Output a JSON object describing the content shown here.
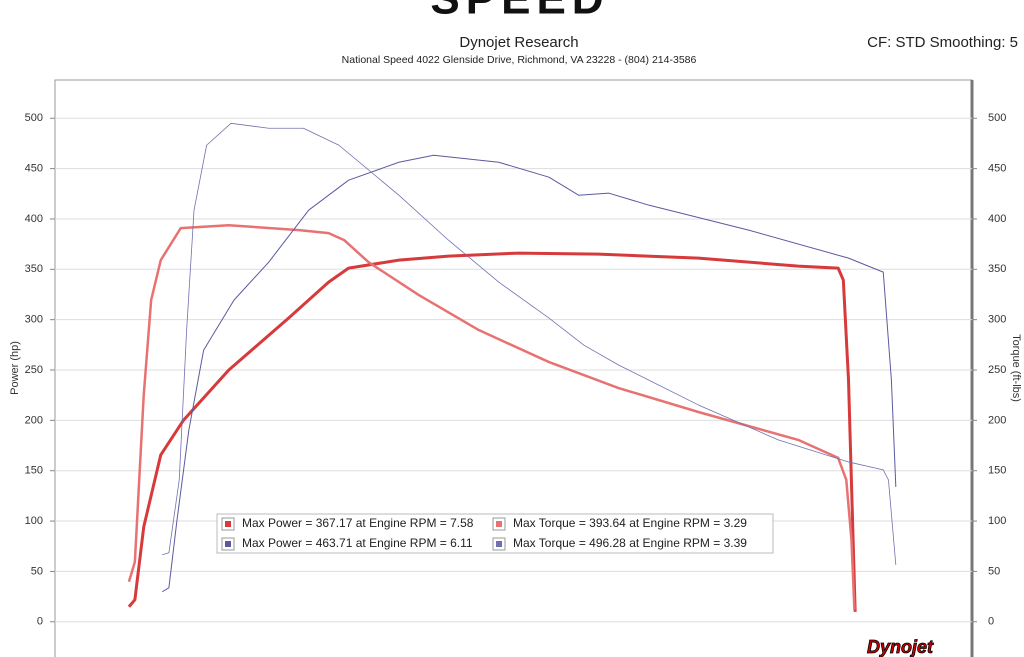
{
  "header": {
    "logo": "SPEED",
    "title": "Dynojet Research",
    "subtitle": "National Speed 4022 Glenside Drive, Richmond, VA 23228 - (804) 214-3586",
    "settings": "CF: STD Smoothing: 5",
    "footer_logo": "Dynojet"
  },
  "chart_data": {
    "type": "line",
    "ylabel": "Power (hp)",
    "y2label": "Torque (ft-lbs)",
    "xlim": [
      1,
      13.4
    ],
    "ylim": [
      -35,
      538
    ],
    "yticks": [
      0,
      50,
      100,
      150,
      200,
      250,
      300,
      350,
      400,
      450,
      500
    ],
    "y2lim": [
      -35,
      538
    ],
    "y2ticks": [
      0,
      50,
      100,
      150,
      200,
      250,
      300,
      350,
      400,
      450,
      500
    ],
    "grid": true,
    "series": [
      {
        "name": "Max Power = 367.17 at Engine RPM = 7.58",
        "color": "#d63a3a",
        "width": 3,
        "x": [
          2.0,
          2.08,
          2.2,
          2.43,
          2.74,
          3.35,
          4.16,
          4.7,
          4.97,
          5.65,
          6.32,
          7.27,
          8.35,
          9.7,
          11.05,
          11.59,
          11.66,
          11.73,
          11.8,
          11.82
        ],
        "values": [
          14.9,
          21.8,
          94.2,
          165.7,
          200.4,
          250,
          301.6,
          337.3,
          351.2,
          359.1,
          363.1,
          366.1,
          365.1,
          361.1,
          353.2,
          351.2,
          339.3,
          240.1,
          61.5,
          9.9
        ]
      },
      {
        "name": "Max Torque = 393.64 at Engine RPM = 3.29",
        "color": "#e87272",
        "width": 2.5,
        "axis": "y2",
        "x": [
          2.0,
          2.08,
          2.2,
          2.3,
          2.43,
          2.7,
          3.35,
          4.3,
          4.7,
          4.91,
          5.24,
          5.92,
          6.73,
          7.68,
          8.62,
          9.7,
          11.05,
          11.59,
          11.7,
          11.77,
          11.81
        ],
        "values": [
          39.7,
          59.5,
          225.2,
          319.4,
          359.1,
          390.9,
          393.8,
          388.9,
          385.9,
          379,
          357.1,
          324.4,
          289.7,
          257.9,
          232.1,
          208.3,
          180.6,
          162.7,
          140.9,
          81.3,
          11.9
        ]
      },
      {
        "name": "Max Power = 463.71 at Engine RPM = 6.11",
        "color": "#5a5aa0",
        "width": 1,
        "x": [
          2.45,
          2.54,
          2.65,
          2.81,
          3.01,
          3.42,
          3.89,
          4.43,
          4.97,
          5.65,
          6.12,
          7.0,
          7.68,
          8.08,
          8.49,
          9.03,
          10.38,
          11.73,
          12.2,
          12.31,
          12.37
        ],
        "values": [
          29.8,
          33.7,
          101.2,
          190.5,
          269.8,
          319.4,
          357.1,
          408.7,
          438.5,
          456.3,
          463.3,
          456.3,
          441.5,
          423.6,
          425.6,
          413.7,
          388.9,
          361.1,
          347.2,
          240.1,
          133.9
        ]
      },
      {
        "name": "Max Torque = 496.28 at Engine RPM = 3.39",
        "color": "#7070b0",
        "width": 0.8,
        "axis": "y2",
        "x": [
          2.45,
          2.54,
          2.68,
          2.78,
          2.88,
          3.05,
          3.38,
          3.89,
          4.36,
          4.84,
          5.65,
          6.32,
          7.0,
          7.68,
          8.15,
          8.62,
          9.7,
          10.78,
          11.73,
          12.2,
          12.27,
          12.37
        ],
        "values": [
          66.5,
          68.5,
          140.9,
          289.7,
          408.7,
          473.2,
          495,
          490.1,
          490.1,
          473.2,
          423.6,
          379,
          337.3,
          301.6,
          274.8,
          255,
          215.3,
          180.6,
          158.7,
          150.8,
          140.9,
          56.5
        ]
      }
    ]
  }
}
